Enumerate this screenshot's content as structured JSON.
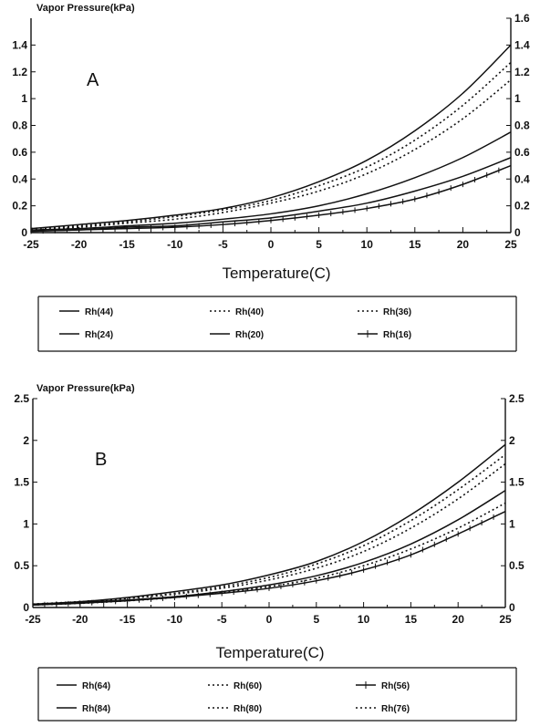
{
  "chart_data": [
    {
      "type": "line",
      "panel_label": "A",
      "ylabel": "Vapor Pressure(kPa)",
      "xlabel": "Temperature(C)",
      "xlim": [
        -25,
        25
      ],
      "ylim": [
        0,
        1.6
      ],
      "xticks": [
        "-25",
        "-20",
        "-15",
        "-10",
        "-5",
        "0",
        "5",
        "10",
        "15",
        "20",
        "25"
      ],
      "yticks_left": [
        "0",
        "0.2",
        "0.4",
        "0.6",
        "0.8",
        "1",
        "1.2",
        "1.4"
      ],
      "yticks_right": [
        "0",
        "0.2",
        "0.4",
        "0.6",
        "0.8",
        "1",
        "1.2",
        "1.4",
        "1.6"
      ],
      "grid": false,
      "legend_position": "bottom",
      "x": [
        -25,
        -20,
        -15,
        -10,
        -5,
        0,
        5,
        10,
        15,
        20,
        25
      ],
      "series": [
        {
          "name": "Rh(44)",
          "style": "solid",
          "values": [
            0.03,
            0.06,
            0.09,
            0.13,
            0.18,
            0.26,
            0.38,
            0.54,
            0.76,
            1.04,
            1.4
          ]
        },
        {
          "name": "Rh(40)",
          "style": "dotted",
          "values": [
            0.03,
            0.05,
            0.08,
            0.12,
            0.17,
            0.24,
            0.35,
            0.49,
            0.69,
            0.95,
            1.27
          ]
        },
        {
          "name": "Rh(36)",
          "style": "dotted",
          "values": [
            0.02,
            0.04,
            0.07,
            0.1,
            0.15,
            0.22,
            0.31,
            0.44,
            0.62,
            0.85,
            1.14
          ]
        },
        {
          "name": "Rh(24)",
          "style": "solid",
          "values": [
            0.02,
            0.03,
            0.05,
            0.07,
            0.1,
            0.14,
            0.2,
            0.29,
            0.41,
            0.56,
            0.75
          ]
        },
        {
          "name": "Rh(20)",
          "style": "solid",
          "values": [
            0.01,
            0.02,
            0.04,
            0.05,
            0.08,
            0.11,
            0.16,
            0.22,
            0.31,
            0.42,
            0.56
          ]
        },
        {
          "name": "Rh(16)",
          "style": "solid-ticked",
          "values": [
            0.01,
            0.02,
            0.03,
            0.04,
            0.06,
            0.09,
            0.13,
            0.18,
            0.25,
            0.36,
            0.5
          ]
        }
      ]
    },
    {
      "type": "line",
      "panel_label": "B",
      "ylabel": "Vapor Pressure(kPa)",
      "xlabel": "Temperature(C)",
      "xlim": [
        -25,
        25
      ],
      "ylim": [
        0,
        2.5
      ],
      "xticks": [
        "-25",
        "-20",
        "-15",
        "-10",
        "-5",
        "0",
        "5",
        "10",
        "15",
        "20",
        "25"
      ],
      "yticks_left": [
        "0",
        "0.5",
        "1",
        "1.5",
        "2",
        "2.5"
      ],
      "yticks_right": [
        "0",
        "0.5",
        "1",
        "1.5",
        "2",
        "2.5"
      ],
      "grid": false,
      "legend_position": "bottom",
      "x": [
        -25,
        -20,
        -15,
        -10,
        -5,
        0,
        5,
        10,
        15,
        20,
        25
      ],
      "series": [
        {
          "name": "Rh(64)",
          "style": "solid",
          "values": [
            0.04,
            0.07,
            0.12,
            0.19,
            0.27,
            0.39,
            0.55,
            0.79,
            1.11,
            1.5,
            1.95
          ]
        },
        {
          "name": "Rh(60)",
          "style": "dotted",
          "values": [
            0.04,
            0.07,
            0.11,
            0.17,
            0.25,
            0.36,
            0.52,
            0.74,
            1.04,
            1.41,
            1.83
          ]
        },
        {
          "name": "Rh(56)",
          "style": "solid-ticked",
          "values": [
            0.03,
            0.05,
            0.08,
            0.12,
            0.17,
            0.23,
            0.32,
            0.45,
            0.63,
            0.88,
            1.15
          ]
        },
        {
          "name": "Rh(84)",
          "style": "solid",
          "values": [
            0.03,
            0.06,
            0.09,
            0.13,
            0.19,
            0.27,
            0.38,
            0.54,
            0.76,
            1.05,
            1.4
          ]
        },
        {
          "name": "Rh(80)",
          "style": "dotted",
          "values": [
            0.03,
            0.05,
            0.08,
            0.12,
            0.18,
            0.25,
            0.35,
            0.5,
            0.7,
            0.95,
            1.25
          ]
        },
        {
          "name": "Rh(76)",
          "style": "dotted",
          "values": [
            0.04,
            0.07,
            0.11,
            0.16,
            0.23,
            0.33,
            0.47,
            0.67,
            0.95,
            1.3,
            1.72
          ]
        }
      ]
    }
  ]
}
